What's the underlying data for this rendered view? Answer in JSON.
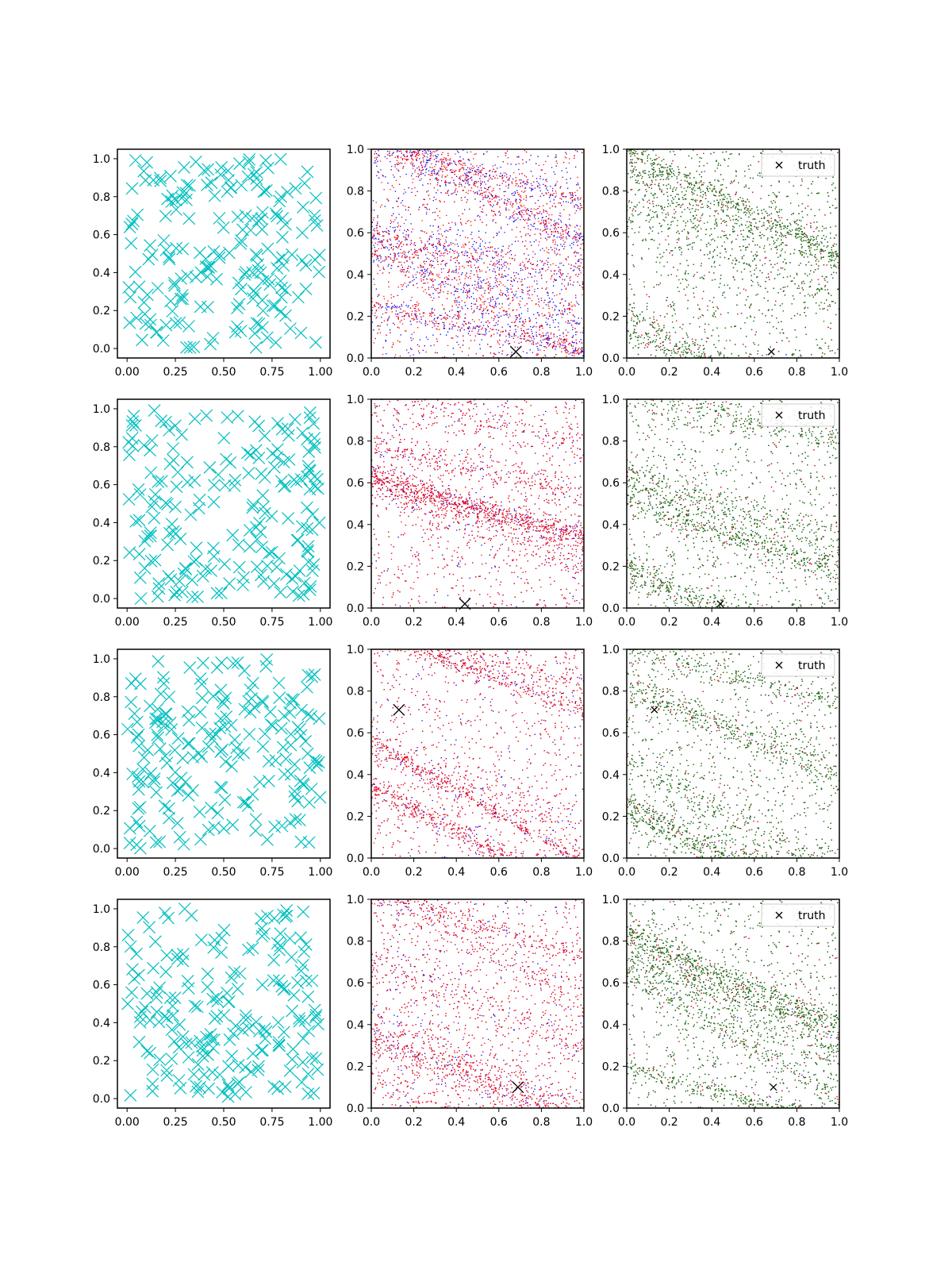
{
  "figure": {
    "layout": "4 rows x 3 columns grid of scatter plots",
    "background": "#ffffff"
  },
  "colors": {
    "cyan": "#00bfbf",
    "blue": "#0000ff",
    "red": "#ff0000",
    "green": "#008000",
    "black": "#000000"
  },
  "chart_data": [
    {
      "type": "scatter",
      "row": 1,
      "col": 1,
      "marker": "x",
      "series": [
        {
          "color": "#00bfbf",
          "count": 200,
          "distribution": "uniform"
        }
      ],
      "xlim": [
        -0.05,
        1.05
      ],
      "ylim": [
        -0.05,
        1.05
      ],
      "xticks": [
        "0.00",
        "0.25",
        "0.50",
        "0.75",
        "1.00"
      ],
      "yticks": [
        "0.0",
        "0.2",
        "0.4",
        "0.6",
        "0.8",
        "1.0"
      ]
    },
    {
      "type": "scatter",
      "row": 1,
      "col": 2,
      "series": [
        {
          "color": "#0000ff"
        },
        {
          "color": "#ff0000"
        }
      ],
      "bands": [
        {
          "y0": 1.0,
          "slope": -0.4,
          "series": "red"
        },
        {
          "y0": 0.48,
          "slope": -0.45
        },
        {
          "y0": 0.15,
          "slope": -0.35
        }
      ],
      "truth": {
        "x": 0.68,
        "y": 0.03
      },
      "xlim": [
        0,
        1
      ],
      "ylim": [
        0,
        1
      ],
      "xticks": [
        "0.0",
        "0.2",
        "0.4",
        "0.6",
        "0.8",
        "1.0"
      ],
      "yticks": [
        "0.0",
        "0.2",
        "0.4",
        "0.6",
        "0.8",
        "1.0"
      ]
    },
    {
      "type": "scatter",
      "row": 1,
      "col": 3,
      "series": [
        {
          "color": "#0000ff"
        },
        {
          "color": "#ff0000"
        },
        {
          "color": "#008000"
        }
      ],
      "legend": {
        "label": "truth",
        "position": "upper right"
      },
      "truth": {
        "x": 0.68,
        "y": 0.03
      },
      "xlim": [
        0,
        1
      ],
      "ylim": [
        0,
        1
      ],
      "xticks": [
        "0.0",
        "0.2",
        "0.4",
        "0.6",
        "0.8",
        "1.0"
      ],
      "yticks": [
        "0.0",
        "0.2",
        "0.4",
        "0.6",
        "0.8",
        "1.0"
      ]
    },
    {
      "type": "scatter",
      "row": 2,
      "col": 1,
      "marker": "x",
      "series": [
        {
          "color": "#00bfbf",
          "count": 200,
          "distribution": "uniform"
        }
      ],
      "xlim": [
        -0.05,
        1.05
      ],
      "ylim": [
        -0.05,
        1.05
      ],
      "xticks": [
        "0.00",
        "0.25",
        "0.50",
        "0.75",
        "1.00"
      ],
      "yticks": [
        "0.0",
        "0.2",
        "0.4",
        "0.6",
        "0.8",
        "1.0"
      ]
    },
    {
      "type": "scatter",
      "row": 2,
      "col": 2,
      "series": [
        {
          "color": "#0000ff"
        },
        {
          "color": "#ff0000"
        }
      ],
      "truth": {
        "x": 0.44,
        "y": 0.02
      },
      "xlim": [
        0,
        1
      ],
      "ylim": [
        0,
        1
      ],
      "xticks": [
        "0.0",
        "0.2",
        "0.4",
        "0.6",
        "0.8",
        "1.0"
      ],
      "yticks": [
        "0.0",
        "0.2",
        "0.4",
        "0.6",
        "0.8",
        "1.0"
      ]
    },
    {
      "type": "scatter",
      "row": 2,
      "col": 3,
      "series": [
        {
          "color": "#0000ff"
        },
        {
          "color": "#ff0000"
        },
        {
          "color": "#008000"
        }
      ],
      "legend": {
        "label": "truth",
        "position": "upper right"
      },
      "truth": {
        "x": 0.44,
        "y": 0.02
      },
      "xlim": [
        0,
        1
      ],
      "ylim": [
        0,
        1
      ],
      "xticks": [
        "0.0",
        "0.2",
        "0.4",
        "0.6",
        "0.8",
        "1.0"
      ],
      "yticks": [
        "0.0",
        "0.2",
        "0.4",
        "0.6",
        "0.8",
        "1.0"
      ]
    },
    {
      "type": "scatter",
      "row": 3,
      "col": 1,
      "marker": "x",
      "series": [
        {
          "color": "#00bfbf",
          "count": 200,
          "distribution": "uniform"
        }
      ],
      "xlim": [
        -0.05,
        1.05
      ],
      "ylim": [
        -0.05,
        1.05
      ],
      "xticks": [
        "0.00",
        "0.25",
        "0.50",
        "0.75",
        "1.00"
      ],
      "yticks": [
        "0.0",
        "0.2",
        "0.4",
        "0.6",
        "0.8",
        "1.0"
      ]
    },
    {
      "type": "scatter",
      "row": 3,
      "col": 2,
      "series": [
        {
          "color": "#0000ff"
        },
        {
          "color": "#ff0000"
        }
      ],
      "truth": {
        "x": 0.13,
        "y": 0.71
      },
      "xlim": [
        0,
        1
      ],
      "ylim": [
        0,
        1
      ],
      "xticks": [
        "0.0",
        "0.2",
        "0.4",
        "0.6",
        "0.8",
        "1.0"
      ],
      "yticks": [
        "0.0",
        "0.2",
        "0.4",
        "0.6",
        "0.8",
        "1.0"
      ]
    },
    {
      "type": "scatter",
      "row": 3,
      "col": 3,
      "series": [
        {
          "color": "#0000ff"
        },
        {
          "color": "#ff0000"
        },
        {
          "color": "#008000"
        }
      ],
      "legend": {
        "label": "truth",
        "position": "upper right"
      },
      "truth": {
        "x": 0.13,
        "y": 0.71
      },
      "xlim": [
        0,
        1
      ],
      "ylim": [
        0,
        1
      ],
      "xticks": [
        "0.0",
        "0.2",
        "0.4",
        "0.6",
        "0.8",
        "1.0"
      ],
      "yticks": [
        "0.0",
        "0.2",
        "0.4",
        "0.6",
        "0.8",
        "1.0"
      ]
    },
    {
      "type": "scatter",
      "row": 4,
      "col": 1,
      "marker": "x",
      "series": [
        {
          "color": "#00bfbf",
          "count": 200,
          "distribution": "uniform"
        }
      ],
      "xlim": [
        -0.05,
        1.05
      ],
      "ylim": [
        -0.05,
        1.05
      ],
      "xticks": [
        "0.00",
        "0.25",
        "0.50",
        "0.75",
        "1.00"
      ],
      "yticks": [
        "0.0",
        "0.2",
        "0.4",
        "0.6",
        "0.8",
        "1.0"
      ]
    },
    {
      "type": "scatter",
      "row": 4,
      "col": 2,
      "series": [
        {
          "color": "#0000ff"
        },
        {
          "color": "#ff0000"
        }
      ],
      "truth": {
        "x": 0.69,
        "y": 0.1
      },
      "xlim": [
        0,
        1
      ],
      "ylim": [
        0,
        1
      ],
      "xticks": [
        "0.0",
        "0.2",
        "0.4",
        "0.6",
        "0.8",
        "1.0"
      ],
      "yticks": [
        "0.0",
        "0.2",
        "0.4",
        "0.6",
        "0.8",
        "1.0"
      ]
    },
    {
      "type": "scatter",
      "row": 4,
      "col": 3,
      "series": [
        {
          "color": "#0000ff"
        },
        {
          "color": "#ff0000"
        },
        {
          "color": "#008000"
        }
      ],
      "legend": {
        "label": "truth",
        "position": "upper right"
      },
      "truth": {
        "x": 0.69,
        "y": 0.1
      },
      "xlim": [
        0,
        1
      ],
      "ylim": [
        0,
        1
      ],
      "xticks": [
        "0.0",
        "0.2",
        "0.4",
        "0.6",
        "0.8",
        "1.0"
      ],
      "yticks": [
        "0.0",
        "0.2",
        "0.4",
        "0.6",
        "0.8",
        "1.0"
      ]
    }
  ]
}
